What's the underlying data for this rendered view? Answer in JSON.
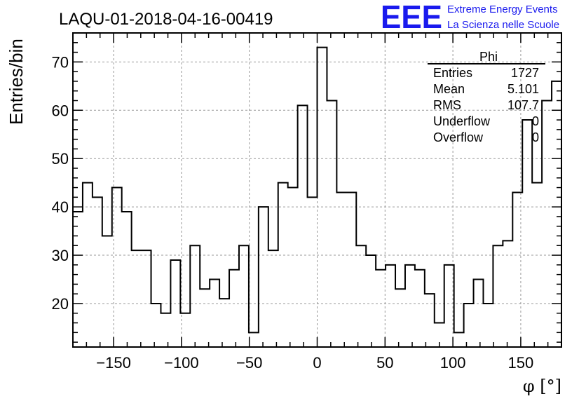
{
  "chart_data": {
    "type": "histogram",
    "title": "LAQU-01-2018-04-16-00419",
    "xlabel": "φ [°]",
    "ylabel": "Entries/bin",
    "xlim": [
      -180,
      180
    ],
    "ylim": [
      11,
      76
    ],
    "bin_width": 7.2,
    "grid": true,
    "xticks": [
      -150,
      -100,
      -50,
      0,
      50,
      100,
      150
    ],
    "xtick_labels": [
      "−150",
      "−100",
      "−50",
      "0",
      "50",
      "100",
      "150"
    ],
    "yticks": [
      20,
      30,
      40,
      50,
      60,
      70
    ],
    "ytick_labels": [
      "20",
      "30",
      "40",
      "50",
      "60",
      "70"
    ],
    "values": [
      39,
      45,
      42,
      34,
      44,
      39,
      31,
      31,
      20,
      18,
      29,
      18,
      32,
      23,
      25,
      21,
      27,
      32,
      14,
      40,
      31,
      45,
      44,
      61,
      42,
      73,
      62,
      43,
      43,
      32,
      30,
      27,
      28,
      23,
      28,
      27,
      22,
      16,
      28,
      14,
      20,
      25,
      20,
      32,
      33,
      43,
      58,
      45,
      62,
      66
    ],
    "stats": {
      "name": "Phi",
      "rows": [
        {
          "label": "Entries",
          "value": "1727"
        },
        {
          "label": "Mean",
          "value": "5.101"
        },
        {
          "label": "RMS",
          "value": "107.7"
        },
        {
          "label": "Underflow",
          "value": "0"
        },
        {
          "label": "Overflow",
          "value": "0"
        }
      ]
    }
  },
  "logo": {
    "mark": "EEE",
    "line1": "Extreme Energy Events",
    "line2": "La Scienza nelle Scuole",
    "color": "#1a1aee"
  }
}
